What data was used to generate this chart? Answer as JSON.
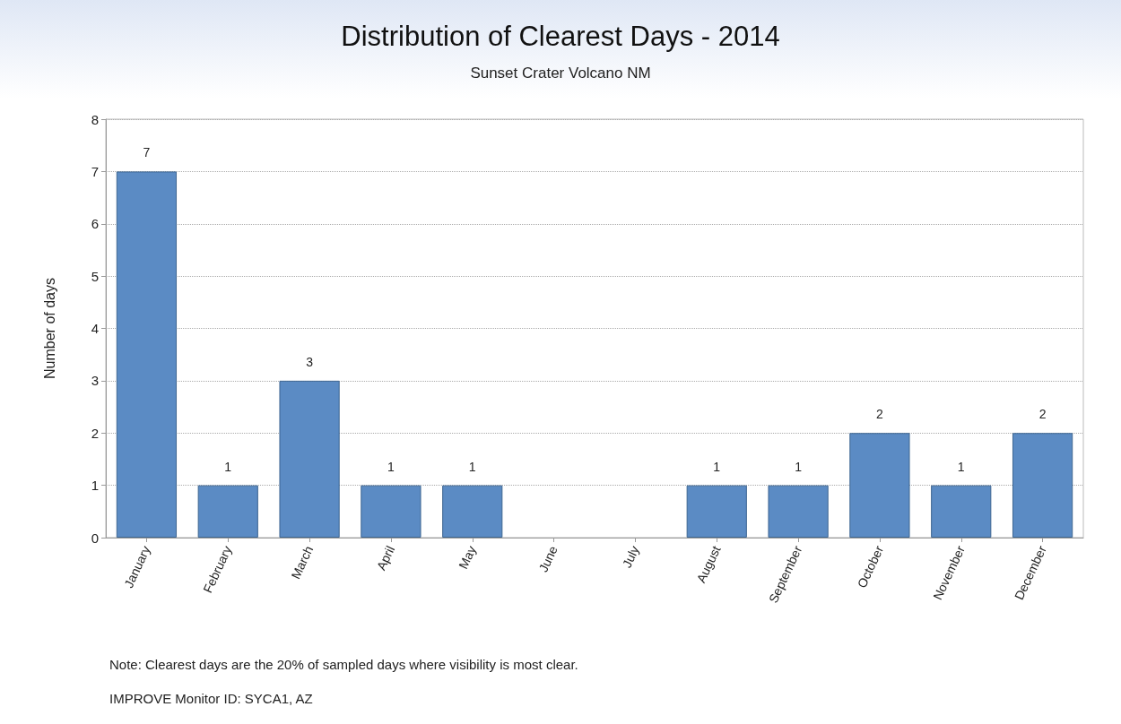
{
  "chart_data": {
    "type": "bar",
    "title": "Distribution of Clearest Days - 2014",
    "subtitle": "Sunset Crater Volcano NM",
    "ylabel": "Number of days",
    "categories": [
      "January",
      "February",
      "March",
      "April",
      "May",
      "June",
      "July",
      "August",
      "September",
      "October",
      "November",
      "December"
    ],
    "values": [
      7,
      1,
      3,
      1,
      1,
      0,
      0,
      1,
      1,
      2,
      1,
      2
    ],
    "value_labels": [
      "7",
      "1",
      "3",
      "1",
      "1",
      null,
      null,
      "1",
      "1",
      "2",
      "1",
      "2"
    ],
    "color": "#5b8bc4",
    "ylim": [
      0,
      8
    ],
    "yticks": [
      0,
      1,
      2,
      3,
      4,
      5,
      6,
      7,
      8
    ],
    "grid": "y",
    "annotations": [
      "Note: Clearest days are the 20% of sampled days where visibility is most clear.",
      "IMPROVE Monitor ID: SYCA1, AZ"
    ]
  }
}
